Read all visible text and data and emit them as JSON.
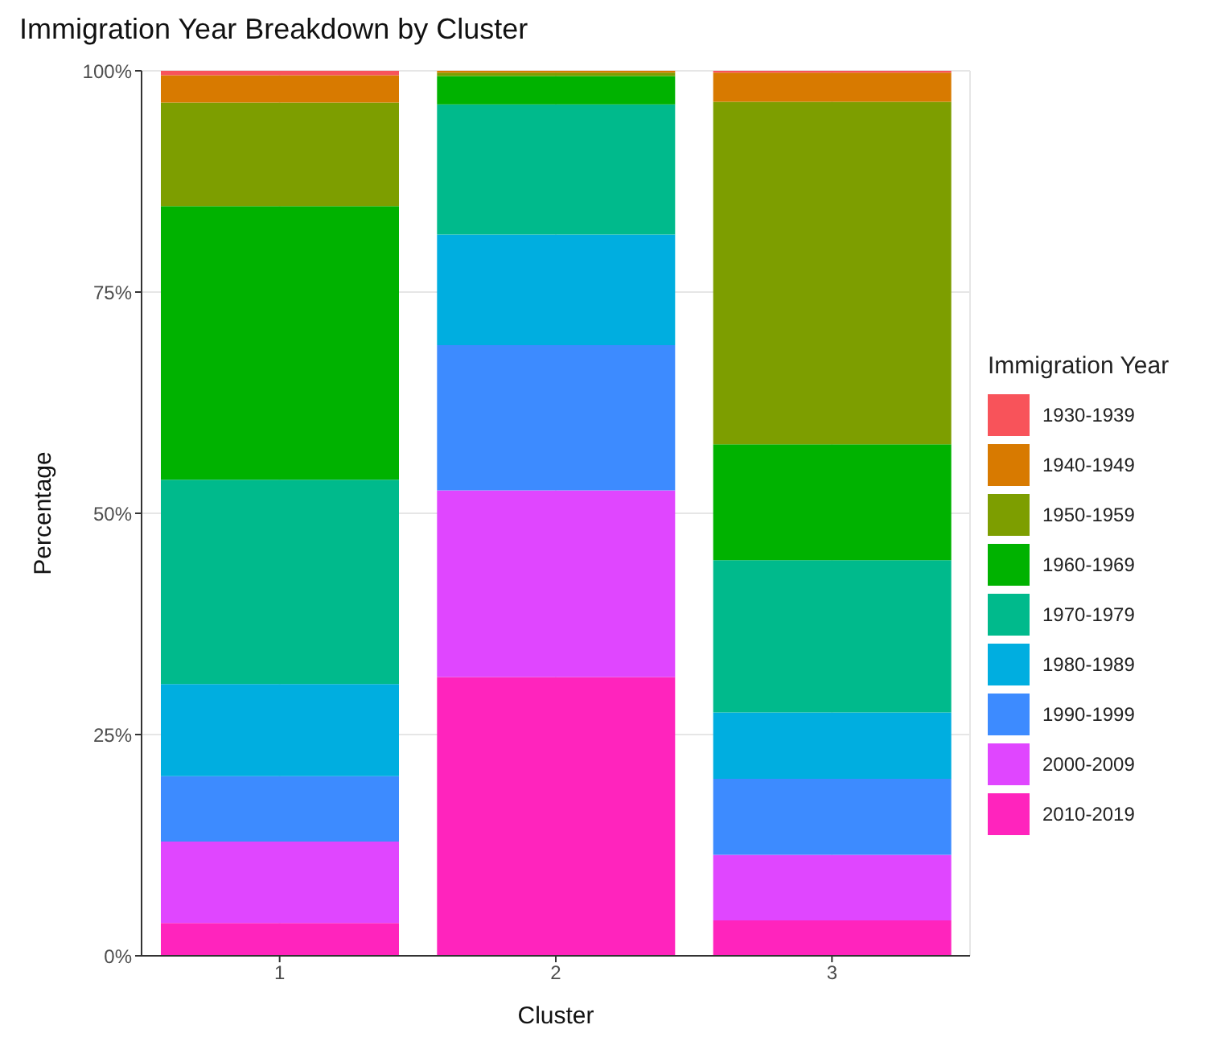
{
  "chart_data": {
    "type": "bar",
    "title": "Immigration Year Breakdown by Cluster",
    "xlabel": "Cluster",
    "ylabel": "Percentage",
    "legend_title": "Immigration Year",
    "categories": [
      "1",
      "2",
      "3"
    ],
    "stacked": true,
    "ylim": [
      0,
      100
    ],
    "yticks": [
      {
        "value": 0,
        "label": "0%"
      },
      {
        "value": 25,
        "label": "25%"
      },
      {
        "value": 50,
        "label": "50%"
      },
      {
        "value": 75,
        "label": "75%"
      },
      {
        "value": 100,
        "label": "100%"
      }
    ],
    "grid": true,
    "legend": "right",
    "series": [
      {
        "name": "2010-2019",
        "color": "#ff24bd",
        "values": [
          3.7,
          31.5,
          4.0
        ]
      },
      {
        "name": "2000-2009",
        "color": "#e046ff",
        "values": [
          9.2,
          21.1,
          7.4
        ]
      },
      {
        "name": "1990-1999",
        "color": "#3d8bff",
        "values": [
          7.4,
          16.4,
          8.6
        ]
      },
      {
        "name": "1980-1989",
        "color": "#00aee0",
        "values": [
          10.4,
          12.5,
          7.5
        ]
      },
      {
        "name": "1970-1979",
        "color": "#00ba8c",
        "values": [
          23.1,
          14.7,
          17.2
        ]
      },
      {
        "name": "1960-1969",
        "color": "#00b200",
        "values": [
          30.9,
          3.2,
          13.1
        ]
      },
      {
        "name": "1950-1959",
        "color": "#7d9e00",
        "values": [
          11.7,
          0.4,
          38.7
        ]
      },
      {
        "name": "1940-1949",
        "color": "#d87a00",
        "values": [
          3.1,
          0.2,
          3.3
        ]
      },
      {
        "name": "1930-1939",
        "color": "#f8535a",
        "values": [
          0.5,
          0,
          0.2
        ]
      }
    ]
  }
}
